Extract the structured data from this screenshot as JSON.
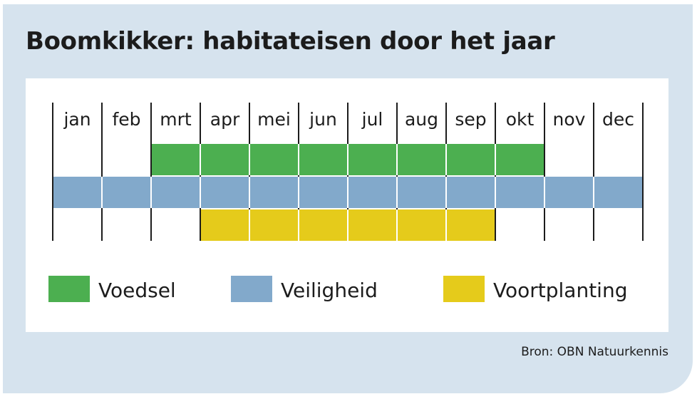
{
  "title": "Boomkikker: habitateisen door het jaar",
  "source": "Bron: OBN Natuurkennis",
  "chart_data": {
    "type": "gantt",
    "categories": [
      "jan",
      "feb",
      "mrt",
      "apr",
      "mei",
      "jun",
      "jul",
      "aug",
      "sep",
      "okt",
      "nov",
      "dec"
    ],
    "series": [
      {
        "name": "Voedsel",
        "color": "#4caf50",
        "start_month": "mrt",
        "end_month": "okt"
      },
      {
        "name": "Veiligheid",
        "color": "#82a9cb",
        "start_month": "jan",
        "end_month": "dec"
      },
      {
        "name": "Voortplanting",
        "color": "#e5cb1b",
        "start_month": "apr",
        "end_month": "sep"
      }
    ]
  }
}
